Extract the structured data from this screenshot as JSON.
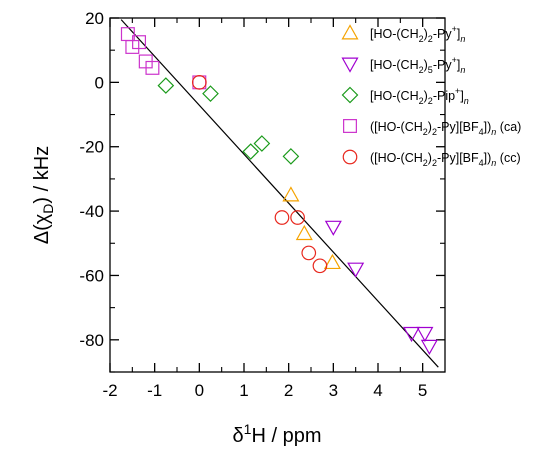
{
  "chart_data": {
    "type": "scatter",
    "xlabel_parts": [
      "δ",
      "1",
      "H / ppm"
    ],
    "ylabel_parts": [
      "Δ(χ",
      "D",
      ") / kHz"
    ],
    "xlim": [
      -2,
      5.5
    ],
    "ylim": [
      -90,
      20
    ],
    "x_ticks": [
      -2,
      -1,
      0,
      1,
      2,
      3,
      4,
      5
    ],
    "y_ticks": [
      20,
      0,
      -20,
      -40,
      -60,
      -80
    ],
    "x_tick_labels": [
      "-2",
      "-1",
      "0",
      "1",
      "2",
      "3",
      "4",
      "5"
    ],
    "y_tick_labels": [
      "20",
      "0",
      "-20",
      "-40",
      "-60",
      "-80"
    ],
    "grid": false,
    "legend_position": "top-right",
    "fit_line": {
      "x": [
        -1.75,
        5.35
      ],
      "y": [
        19.5,
        -88.5
      ],
      "color": "#000000"
    },
    "series": [
      {
        "legend_parts": [
          [
            "[HO-(CH",
            ""
          ],
          [
            "2",
            "sub"
          ],
          [
            ")",
            ""
          ],
          [
            "2",
            "sub"
          ],
          [
            "-Py",
            ""
          ],
          [
            "+",
            "sup"
          ],
          [
            "]",
            ""
          ],
          [
            "n",
            "sub-i"
          ]
        ],
        "marker": "triangle-up",
        "color": "#f5a300",
        "points": [
          [
            2.05,
            -35
          ],
          [
            2.35,
            -47
          ],
          [
            2.98,
            -56
          ]
        ]
      },
      {
        "legend_parts": [
          [
            "[HO-(CH",
            ""
          ],
          [
            "2",
            "sub"
          ],
          [
            ")",
            ""
          ],
          [
            "5",
            "sub"
          ],
          [
            "-Py",
            ""
          ],
          [
            "+",
            "sup"
          ],
          [
            "]",
            ""
          ],
          [
            "n",
            "sub-i"
          ]
        ],
        "marker": "triangle-down",
        "color": "#a000d0",
        "points": [
          [
            3.0,
            -45
          ],
          [
            3.5,
            -58
          ],
          [
            4.75,
            -78
          ],
          [
            5.05,
            -78
          ],
          [
            5.15,
            -82
          ]
        ]
      },
      {
        "legend_parts": [
          [
            "[HO-(CH",
            ""
          ],
          [
            "2",
            "sub"
          ],
          [
            ")",
            ""
          ],
          [
            "2",
            "sub"
          ],
          [
            "-Pip",
            ""
          ],
          [
            "+",
            "sup"
          ],
          [
            "]",
            ""
          ],
          [
            "n",
            "sub-i"
          ]
        ],
        "marker": "diamond",
        "color": "#1a9a1a",
        "points": [
          [
            -0.75,
            -1
          ],
          [
            0.25,
            -3.5
          ],
          [
            1.15,
            -21.5
          ],
          [
            1.4,
            -19
          ],
          [
            2.05,
            -23
          ]
        ]
      },
      {
        "legend_parts": [
          [
            "([HO-(CH",
            ""
          ],
          [
            "2",
            "sub"
          ],
          [
            ")",
            ""
          ],
          [
            "2",
            "sub"
          ],
          [
            "-Py][BF",
            ""
          ],
          [
            "4",
            "sub"
          ],
          [
            "])",
            ""
          ],
          [
            "n",
            "sub-i"
          ],
          [
            " (ca)",
            ""
          ]
        ],
        "marker": "square",
        "color": "#cc33cc",
        "points": [
          [
            -1.6,
            15
          ],
          [
            -1.5,
            11
          ],
          [
            -1.35,
            12.5
          ],
          [
            -1.2,
            6.5
          ],
          [
            -1.05,
            4.5
          ],
          [
            0.0,
            0.0
          ]
        ]
      },
      {
        "legend_parts": [
          [
            "([HO-(CH",
            ""
          ],
          [
            "2",
            "sub"
          ],
          [
            ")",
            ""
          ],
          [
            "2",
            "sub"
          ],
          [
            "-Py][BF",
            ""
          ],
          [
            "4",
            "sub"
          ],
          [
            "])",
            ""
          ],
          [
            "n",
            "sub-i"
          ],
          [
            " (cc)",
            ""
          ]
        ],
        "marker": "circle",
        "color": "#e8281e",
        "points": [
          [
            0.0,
            0.0
          ],
          [
            1.85,
            -42
          ],
          [
            2.2,
            -42
          ],
          [
            2.45,
            -53
          ],
          [
            2.7,
            -57
          ]
        ]
      }
    ]
  }
}
